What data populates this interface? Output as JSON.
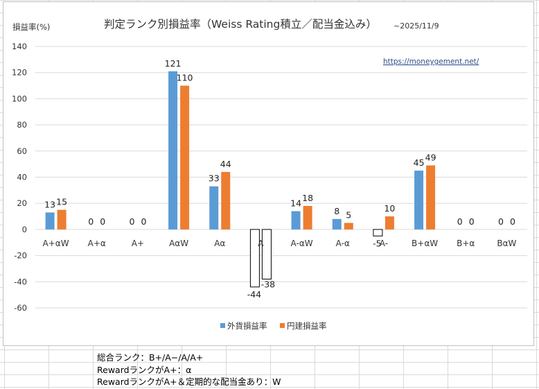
{
  "chart_data": {
    "type": "bar",
    "title": "判定ランク別損益率（Weiss Rating積立／配当金込み）",
    "subtitle": "~2025/11/9",
    "ylabel": "損益率(%)",
    "xlabel": "",
    "ylim": [
      -60,
      140
    ],
    "yticks": [
      140,
      120,
      100,
      80,
      60,
      40,
      20,
      0,
      -20,
      -40,
      -60
    ],
    "grid": true,
    "legend_position": "bottom",
    "watermark": "https://moneygement.net/",
    "categories": [
      "A+αW",
      "A+α",
      "A+",
      "AαW",
      "Aα",
      "A",
      "A-αW",
      "A-α",
      "A-",
      "B+αW",
      "B+α",
      "BαW"
    ],
    "series": [
      {
        "name": "外貨損益率",
        "color": "#5b9bd5",
        "values": [
          13,
          0,
          0,
          121,
          33,
          -44,
          14,
          8,
          -5,
          45,
          0,
          0
        ]
      },
      {
        "name": "円建損益率",
        "color": "#ed7d31",
        "values": [
          15,
          0,
          0,
          110,
          44,
          -38,
          18,
          5,
          10,
          49,
          0,
          0
        ]
      }
    ]
  },
  "notes": [
    "総合ランク：B+/A−/A/A+",
    "RewardランクがA+：α",
    "RewardランクがA+＆定期的な配当金あり：W"
  ]
}
